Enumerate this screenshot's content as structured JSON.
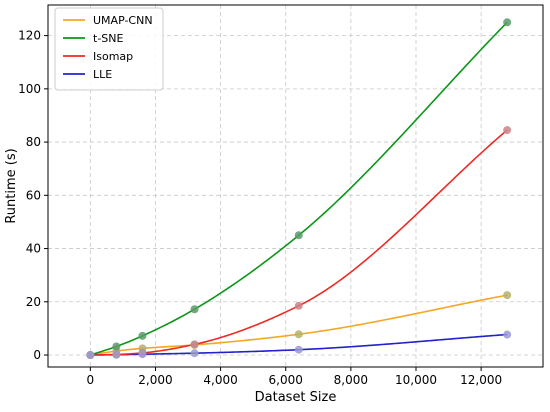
{
  "chart_data": {
    "type": "line",
    "xlabel": "Dataset Size",
    "ylabel": "Runtime (s)",
    "xlim": [
      -1300,
      13900
    ],
    "ylim": [
      -4.5,
      131.5
    ],
    "xticks": [
      0,
      2000,
      4000,
      6000,
      8000,
      10000,
      12000
    ],
    "xtick_labels": [
      "0",
      "2,000",
      "4,000",
      "6,000",
      "8,000",
      "10,000",
      "12,000"
    ],
    "yticks": [
      0,
      20,
      40,
      60,
      80,
      100,
      120
    ],
    "ytick_labels": [
      "0",
      "20",
      "40",
      "60",
      "80",
      "100",
      "120"
    ],
    "grid": true,
    "grid_style": "dashed",
    "legend_position": "top-left",
    "x": [
      0,
      800,
      1600,
      3200,
      6400,
      12800
    ],
    "series": [
      {
        "name": "UMAP-CNN",
        "color": "#f5a623",
        "marker_color": "#b5b06a",
        "values": [
          0.0,
          1.5,
          2.5,
          3.8,
          7.8,
          22.5
        ]
      },
      {
        "name": "t-SNE",
        "color": "#0a9618",
        "marker_color": "#5b9a6a",
        "values": [
          0.0,
          3.2,
          7.2,
          17.2,
          45.0,
          125.0
        ]
      },
      {
        "name": "Isomap",
        "color": "#ee2a24",
        "marker_color": "#c9848a",
        "values": [
          0.0,
          0.2,
          0.8,
          4.0,
          18.5,
          84.5
        ]
      },
      {
        "name": "LLE",
        "color": "#2222cc",
        "marker_color": "#9a9ad0",
        "values": [
          0.0,
          0.1,
          0.3,
          0.7,
          2.0,
          7.7
        ]
      }
    ]
  }
}
